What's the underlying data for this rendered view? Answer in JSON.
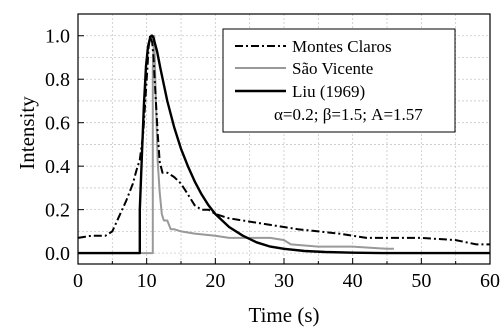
{
  "chart_data": {
    "type": "line",
    "xlabel": "Time (s)",
    "ylabel": "Intensity",
    "xlim": [
      0,
      60
    ],
    "ylim": [
      -0.05,
      1.1
    ],
    "x_ticks": [
      0,
      10,
      20,
      30,
      40,
      50,
      60
    ],
    "y_ticks": [
      0.0,
      0.2,
      0.4,
      0.6,
      0.8,
      1.0
    ],
    "x_tick_labels": [
      "0",
      "10",
      "20",
      "30",
      "40",
      "50",
      "60"
    ],
    "y_tick_labels": [
      "0.0",
      "0.2",
      "0.4",
      "0.6",
      "0.8",
      "1.0"
    ],
    "grid": true,
    "legend_position": "top-right",
    "annotation": "α=0.2; β=1.5; A=1.57",
    "series": [
      {
        "name": "Montes Claros",
        "style": "dashdot",
        "color": "#000000",
        "x": [
          0,
          2,
          4,
          5,
          6,
          7,
          8,
          8.5,
          9,
          9.5,
          10,
          10.3,
          10.5,
          10.8,
          11,
          11.3,
          11.6,
          11.9,
          12.3,
          13,
          14,
          15,
          16,
          17,
          18,
          19,
          20,
          22,
          24,
          26,
          28,
          30,
          32,
          35,
          38,
          40,
          42,
          45,
          48,
          50,
          55,
          58,
          60
        ],
        "y": [
          0.07,
          0.08,
          0.08,
          0.1,
          0.17,
          0.24,
          0.32,
          0.38,
          0.43,
          0.55,
          0.8,
          0.95,
          1.0,
          0.97,
          0.9,
          0.72,
          0.55,
          0.42,
          0.37,
          0.37,
          0.35,
          0.32,
          0.27,
          0.22,
          0.2,
          0.2,
          0.18,
          0.16,
          0.15,
          0.14,
          0.13,
          0.12,
          0.11,
          0.1,
          0.09,
          0.08,
          0.07,
          0.07,
          0.07,
          0.07,
          0.06,
          0.04,
          0.04
        ]
      },
      {
        "name": "São Vicente",
        "style": "solid",
        "color": "#999999",
        "x": [
          0,
          10.9,
          10.9,
          11.1,
          11.3,
          11.6,
          11.9,
          12.2,
          12.5,
          13,
          13.5,
          14,
          15,
          17,
          20,
          22,
          25,
          28,
          30,
          31,
          35,
          40,
          45,
          46
        ],
        "y": [
          0.0,
          0.0,
          0.85,
          1.0,
          0.75,
          0.42,
          0.28,
          0.18,
          0.15,
          0.15,
          0.11,
          0.11,
          0.1,
          0.09,
          0.08,
          0.07,
          0.07,
          0.07,
          0.06,
          0.04,
          0.03,
          0.03,
          0.02,
          0.02
        ]
      },
      {
        "name": "Liu (1969)",
        "style": "solid",
        "color": "#000000",
        "x": [
          0,
          9.0,
          9.0,
          9.3,
          9.6,
          9.9,
          10.2,
          10.5,
          10.7,
          10.8,
          11,
          11.5,
          12,
          13,
          14,
          15,
          16,
          17,
          18,
          19,
          20,
          22,
          24,
          26,
          28,
          30,
          33,
          36,
          40,
          45,
          50,
          60
        ],
        "y": [
          0.0,
          0.0,
          0.2,
          0.45,
          0.68,
          0.86,
          0.95,
          0.99,
          1.0,
          1.0,
          0.99,
          0.93,
          0.85,
          0.7,
          0.58,
          0.48,
          0.4,
          0.33,
          0.27,
          0.22,
          0.18,
          0.12,
          0.08,
          0.05,
          0.03,
          0.02,
          0.01,
          0.005,
          0.002,
          0.0,
          0.0,
          0.0
        ]
      }
    ]
  }
}
